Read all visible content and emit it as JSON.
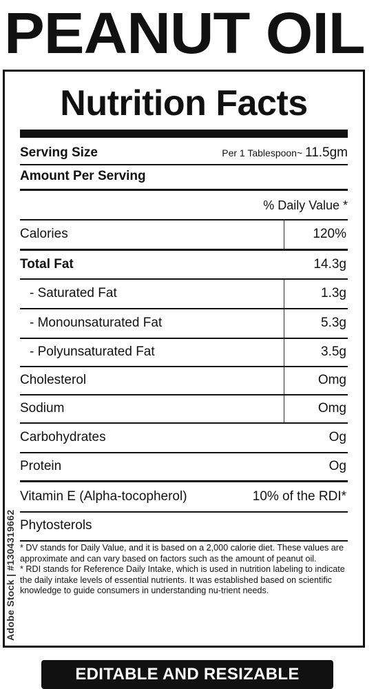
{
  "product_title": "PEANUT OIL",
  "label": {
    "heading": "Nutrition Facts",
    "serving_size_label": "Serving Size",
    "serving_size_prefix": "Per 1 Tablespoon~",
    "serving_size_value": "11.5gm",
    "amount_per_serving": "Amount Per Serving",
    "daily_value_header": "% Daily Value *",
    "nutrients": [
      {
        "name": "Calories",
        "value": "120%"
      },
      {
        "name": "Total Fat",
        "value": "14.3g"
      },
      {
        "name": "- Saturated Fat",
        "value": "1.3g"
      },
      {
        "name": "- Monounsaturated Fat",
        "value": "5.3g"
      },
      {
        "name": "- Polyunsaturated Fat",
        "value": "3.5g"
      },
      {
        "name": "Cholesterol",
        "value": "Omg"
      },
      {
        "name": "Sodium",
        "value": "Omg"
      },
      {
        "name": "Carbohydrates",
        "value": "Og"
      },
      {
        "name": "Protein",
        "value": "Og"
      },
      {
        "name": "Vitamin E (Alpha-tocopherol)",
        "value": "10% of the RDI*"
      },
      {
        "name": "Phytosterols",
        "value": ""
      }
    ],
    "footnotes": [
      "* DV stands for Daily Value, and it is based on a 2,000 calorie diet. These values are approximate and can vary based on factors such as the amount of peanut oil.",
      "* RDI stands for Reference Daily Intake, which is used in nutrition labeling to indicate the daily intake levels of essential nutrients. It was established based on scientific knowledge to guide consumers in understanding nu-trient needs."
    ]
  },
  "watermark": "Adobe Stock | #1304319662",
  "footer_button": "EDITABLE AND RESIZABLE"
}
